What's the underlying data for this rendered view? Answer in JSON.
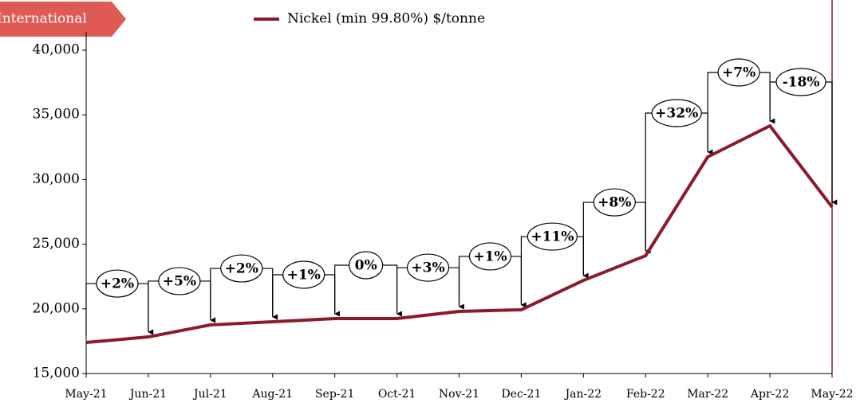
{
  "chart_data": {
    "type": "line",
    "tag": "International",
    "categories": [
      "May-21",
      "Jun-21",
      "Jul-21",
      "Aug-21",
      "Sep-21",
      "Oct-21",
      "Nov-21",
      "Dec-21",
      "Jan-22",
      "Feb-22",
      "Mar-22",
      "Apr-22",
      "May-22"
    ],
    "series": [
      {
        "name": "Nickel (min 99.80%) $/tonne",
        "color": "#8b1a2b",
        "values": [
          17400,
          17830,
          18760,
          19000,
          19250,
          19250,
          19800,
          19930,
          22200,
          24110,
          31750,
          34150,
          27870
        ]
      }
    ],
    "annotations": [
      null,
      "+2%",
      "+5%",
      "+2%",
      "+1%",
      "0%",
      "+3%",
      "+1%",
      "+11%",
      "+8%",
      "+32%",
      "+7%",
      "-18%"
    ],
    "ylim": [
      15000,
      40000
    ],
    "yticks": [
      {
        "value": 15000,
        "label": "15,000"
      },
      {
        "value": 20000,
        "label": "20,000"
      },
      {
        "value": 25000,
        "label": "25,000"
      },
      {
        "value": 30000,
        "label": "30,000"
      },
      {
        "value": 35000,
        "label": "35,000"
      },
      {
        "value": 40000,
        "label": "40,000"
      }
    ]
  }
}
